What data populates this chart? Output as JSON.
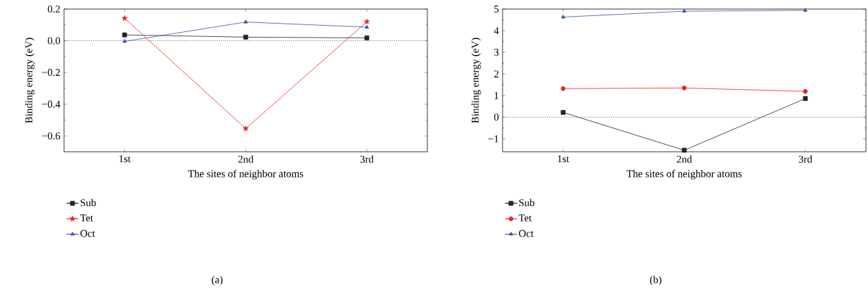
{
  "chart_data": [
    {
      "type": "line",
      "xlabel": "The sites of neighbor atoms",
      "ylabel": "Binding energy (eV)",
      "categories": [
        "1st",
        "2nd",
        "3rd"
      ],
      "series": [
        {
          "name": "Sub",
          "color": "#222222",
          "marker": "square",
          "values": [
            0.037,
            0.023,
            0.018
          ]
        },
        {
          "name": "Tet",
          "color": "#ee2222",
          "marker": "star",
          "values": [
            0.142,
            -0.554,
            0.12
          ]
        },
        {
          "name": "Oct",
          "color": "#3a50a8",
          "marker": "triangle",
          "values": [
            -0.004,
            0.118,
            0.086
          ]
        }
      ],
      "ylim": [
        -0.7,
        0.2
      ],
      "yticks": [
        {
          "value": -0.6,
          "label": "−0.6"
        },
        {
          "value": -0.4,
          "label": "−0.4"
        },
        {
          "value": -0.2,
          "label": "−0.2"
        },
        {
          "value": 0,
          "label": "0.0"
        },
        0.2
      ],
      "ref_lines": [
        {
          "axis": "y",
          "value": 0,
          "color": "#000000",
          "line_style": "dotted"
        }
      ],
      "legend": "bottom left",
      "grid": false,
      "annotations": [
        "(a)"
      ]
    },
    {
      "type": "line",
      "xlabel": "The sites of neighbor atoms",
      "ylabel": "Binding energy (eV)",
      "categories": [
        "1st",
        "2nd",
        "3rd"
      ],
      "series": [
        {
          "name": "Sub",
          "color": "#222222",
          "marker": "square",
          "values": [
            0.22,
            -1.53,
            0.86
          ]
        },
        {
          "name": "Tet",
          "color": "#ee2222",
          "marker": "circle",
          "values": [
            1.32,
            1.35,
            1.19
          ]
        },
        {
          "name": "Oct",
          "color": "#3a50a8",
          "marker": "triangle",
          "values": [
            4.63,
            4.9,
            4.94
          ]
        }
      ],
      "ylim": [
        -1.6,
        5
      ],
      "yticks": [
        {
          "value": -1,
          "label": "−1"
        },
        0,
        1,
        2,
        3,
        4,
        5
      ],
      "ref_lines": [
        {
          "axis": "y",
          "value": 0,
          "color": "#000000",
          "line_style": "dotted"
        }
      ],
      "legend": "bottom left",
      "grid": false,
      "annotations": [
        "(b)"
      ]
    }
  ]
}
